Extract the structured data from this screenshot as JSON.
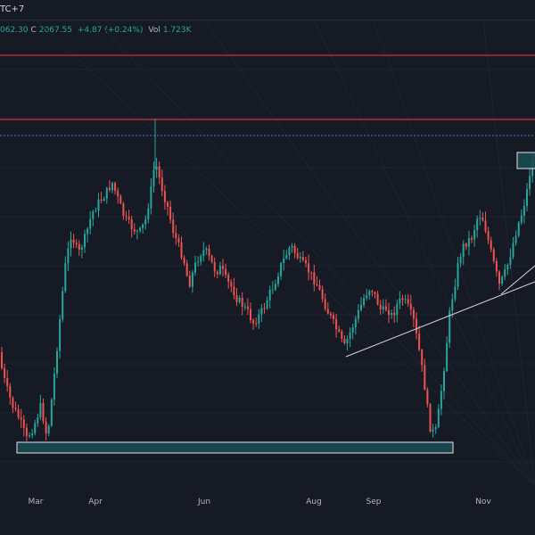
{
  "header": {
    "timezone": "TC+7",
    "ohlc": {
      "open_partial": "062.30",
      "close_label": "C",
      "close_value": "2067.55",
      "change": "+4.87 (+0.24%)",
      "vol_label": "Vol",
      "vol_value": "1.723K"
    }
  },
  "colors": {
    "background": "#161a25",
    "grid": "#1f2330",
    "up": "#26a69a",
    "down": "#ef5350",
    "resistance": "#f23645",
    "dotted": "#5b6bd8",
    "trendline": "#d1d4dc",
    "zone_fill": "#1a4e54",
    "zone_stroke": "#e0e3eb"
  },
  "xaxis": {
    "labels": [
      "Mar",
      "Apr",
      "Jun",
      "Aug",
      "Sep",
      "Nov"
    ]
  },
  "chart_data": {
    "type": "candlestick",
    "x_labels": [
      "Mar",
      "Apr",
      "Jun",
      "Aug",
      "Sep",
      "Nov"
    ],
    "last_close": 2067.55,
    "change": 4.87,
    "change_pct": 0.24,
    "volume": "1.723K",
    "annotations": [
      "two horizontal resistance lines",
      "dotted horizontal line",
      "support zone box",
      "ascending trendlines",
      "small highlight box near last price"
    ]
  }
}
